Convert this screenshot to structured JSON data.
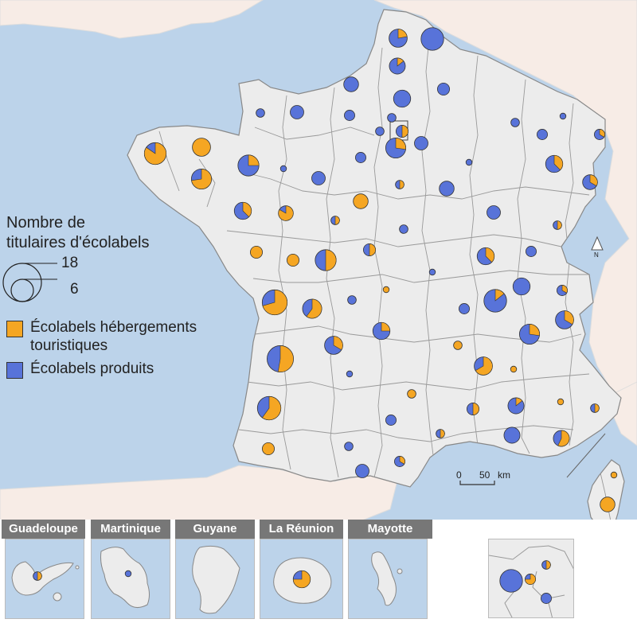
{
  "legend": {
    "title_line1": "Nombre de",
    "title_line2": "titulaires d'écolabels",
    "size_large": "18",
    "size_small": "6",
    "item1_line1": "Écolabels hébergements",
    "item1_line2": "touristiques",
    "item2": "Écolabels produits"
  },
  "colors": {
    "hebergements": "#f5a623",
    "produits": "#5873d9",
    "sea": "#bcd3ea",
    "land": "#ececec",
    "foreign_land": "#f7ece6"
  },
  "scale": {
    "zero": "0",
    "fifty": "50",
    "unit": "km"
  },
  "north": "N",
  "insets": [
    {
      "label": "Guadeloupe"
    },
    {
      "label": "Martinique"
    },
    {
      "label": "Guyane"
    },
    {
      "label": "La Réunion"
    },
    {
      "label": "Mayotte"
    }
  ],
  "symbols_approx": [
    {
      "place": "Nord",
      "hebergements": 2,
      "produits": 7
    },
    {
      "place": "Nord (Lille)",
      "hebergements": 0,
      "produits": 14
    },
    {
      "place": "Pas-de-Calais",
      "hebergements": 1,
      "produits": 6
    },
    {
      "place": "Finistère",
      "hebergements": 11,
      "produits": 2
    },
    {
      "place": "Côtes-d'Armor",
      "hebergements": 9,
      "produits": 0
    },
    {
      "place": "Morbihan",
      "hebergements": 8,
      "produits": 3
    },
    {
      "place": "Ille-et-Vilaine",
      "hebergements": 3,
      "produits": 9
    },
    {
      "place": "Charente-Maritime",
      "hebergements": 12,
      "produits": 5
    },
    {
      "place": "Gironde",
      "hebergements": 10,
      "produits": 9
    },
    {
      "place": "Landes",
      "hebergements": 9,
      "produits": 6
    },
    {
      "place": "Rhône",
      "hebergements": 2,
      "produits": 12
    },
    {
      "place": "Isère",
      "hebergements": 3,
      "produits": 6
    },
    {
      "place": "Bouches-du-Rhône",
      "hebergements": 0,
      "produits": 7
    },
    {
      "place": "Corse-du-Sud",
      "hebergements": 6,
      "produits": 0
    },
    {
      "place": "Paris",
      "hebergements": 3,
      "produits": 1
    },
    {
      "place": "La Réunion",
      "hebergements": 6,
      "produits": 2
    },
    {
      "place": "Guadeloupe",
      "hebergements": 1,
      "produits": 1
    },
    {
      "place": "Martinique",
      "hebergements": 0,
      "produits": 1
    }
  ]
}
